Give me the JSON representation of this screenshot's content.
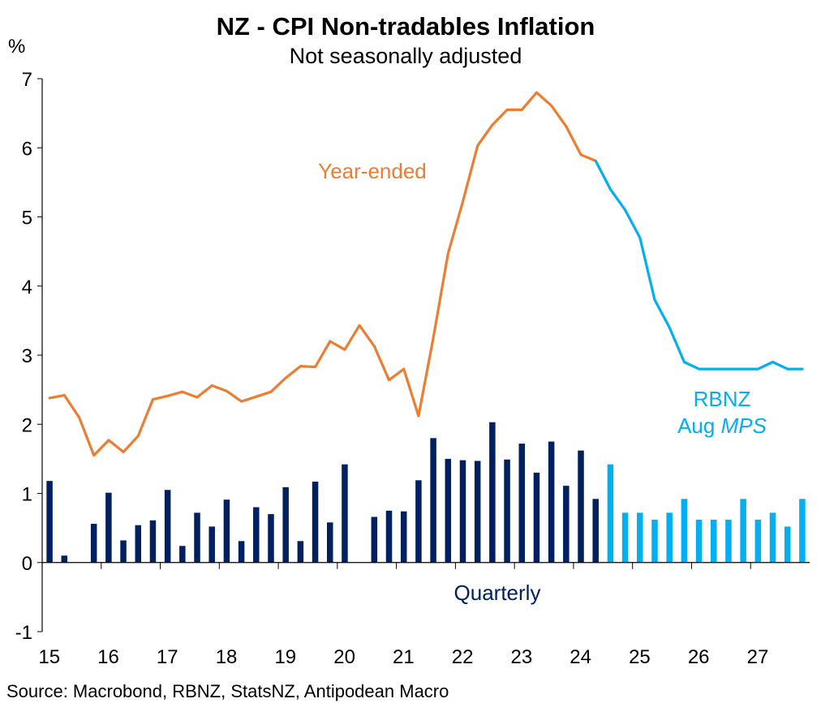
{
  "chart_data": {
    "type": "bar+line",
    "title": "NZ - CPI Non-tradables Inflation",
    "subtitle": "Not seasonally adjusted",
    "ylabel": "%",
    "ylim": [
      -1,
      7
    ],
    "yticks": [
      "-1",
      "0",
      "1",
      "2",
      "3",
      "4",
      "5",
      "6",
      "7"
    ],
    "xticks": [
      "15",
      "16",
      "17",
      "18",
      "19",
      "20",
      "21",
      "22",
      "23",
      "24",
      "25",
      "26",
      "27"
    ],
    "xrange": [
      2015.0,
      2028.0
    ],
    "source": "Source: Macrobond, RBNZ, StatsNZ, Antipodean Macro",
    "colors": {
      "actual_line": "#ed7d31",
      "forecast": "#00b0f0",
      "actual_bar": "#002060"
    },
    "annotations": {
      "line_label": "Year-ended",
      "bar_label": "Quarterly",
      "forecast_label_1": "RBNZ",
      "forecast_label_2_prefix": "Aug ",
      "forecast_label_2_italic": "MPS"
    },
    "series": [
      {
        "name": "Year-ended",
        "kind": "line",
        "x": [
          "2015 Q1",
          "2015 Q2",
          "2015 Q3",
          "2015 Q4",
          "2016 Q1",
          "2016 Q2",
          "2016 Q3",
          "2016 Q4",
          "2017 Q1",
          "2017 Q2",
          "2017 Q3",
          "2017 Q4",
          "2018 Q1",
          "2018 Q2",
          "2018 Q3",
          "2018 Q4",
          "2019 Q1",
          "2019 Q2",
          "2019 Q3",
          "2019 Q4",
          "2020 Q1",
          "2020 Q2",
          "2020 Q3",
          "2020 Q4",
          "2021 Q1",
          "2021 Q2",
          "2021 Q3",
          "2021 Q4",
          "2022 Q1",
          "2022 Q2",
          "2022 Q3",
          "2022 Q4",
          "2023 Q1",
          "2023 Q2",
          "2023 Q3",
          "2023 Q4",
          "2024 Q1",
          "2024 Q2"
        ],
        "values": [
          2.38,
          2.42,
          2.1,
          1.55,
          1.77,
          1.6,
          1.83,
          2.36,
          2.41,
          2.47,
          2.39,
          2.56,
          2.48,
          2.33,
          2.4,
          2.47,
          2.67,
          2.84,
          2.83,
          3.2,
          3.08,
          3.43,
          3.13,
          2.64,
          2.8,
          2.12,
          3.25,
          4.47,
          5.22,
          6.03,
          6.33,
          6.55,
          6.55,
          6.8,
          6.61,
          6.31,
          5.9,
          5.81
        ]
      },
      {
        "name": "RBNZ Aug MPS",
        "kind": "line",
        "x": [
          "2024 Q2",
          "2024 Q3",
          "2024 Q4",
          "2025 Q1",
          "2025 Q2",
          "2025 Q3",
          "2025 Q4",
          "2026 Q1",
          "2026 Q2",
          "2026 Q3",
          "2026 Q4",
          "2027 Q1",
          "2027 Q2",
          "2027 Q3",
          "2027 Q4"
        ],
        "values": [
          5.81,
          5.4,
          5.1,
          4.7,
          3.8,
          3.4,
          2.9,
          2.8,
          2.8,
          2.8,
          2.8,
          2.8,
          2.9,
          2.8,
          2.8
        ]
      },
      {
        "name": "Quarterly",
        "kind": "bar",
        "x": [
          "2015 Q1",
          "2015 Q2",
          "2015 Q3",
          "2015 Q4",
          "2016 Q1",
          "2016 Q2",
          "2016 Q3",
          "2016 Q4",
          "2017 Q1",
          "2017 Q2",
          "2017 Q3",
          "2017 Q4",
          "2018 Q1",
          "2018 Q2",
          "2018 Q3",
          "2018 Q4",
          "2019 Q1",
          "2019 Q2",
          "2019 Q3",
          "2019 Q4",
          "2020 Q1",
          "2020 Q2",
          "2020 Q3",
          "2020 Q4",
          "2021 Q1",
          "2021 Q2",
          "2021 Q3",
          "2021 Q4",
          "2022 Q1",
          "2022 Q2",
          "2022 Q3",
          "2022 Q4",
          "2023 Q1",
          "2023 Q2",
          "2023 Q3",
          "2023 Q4",
          "2024 Q1",
          "2024 Q2"
        ],
        "values": [
          1.18,
          0.1,
          0.0,
          0.56,
          1.01,
          0.32,
          0.54,
          0.61,
          1.05,
          0.24,
          0.72,
          0.52,
          0.91,
          0.31,
          0.8,
          0.7,
          1.09,
          0.31,
          1.17,
          0.58,
          1.42,
          0.0,
          0.66,
          0.75,
          0.74,
          1.19,
          1.8,
          1.5,
          1.48,
          1.47,
          2.03,
          1.49,
          1.72,
          1.3,
          1.75,
          1.11,
          1.62,
          0.92
        ]
      },
      {
        "name": "RBNZ Aug MPS quarterly",
        "kind": "bar",
        "x": [
          "2024 Q3",
          "2024 Q4",
          "2025 Q1",
          "2025 Q2",
          "2025 Q3",
          "2025 Q4",
          "2026 Q1",
          "2026 Q2",
          "2026 Q3",
          "2026 Q4",
          "2027 Q1",
          "2027 Q2",
          "2027 Q3",
          "2027 Q4"
        ],
        "values": [
          1.42,
          0.72,
          0.72,
          0.62,
          0.72,
          0.92,
          0.62,
          0.62,
          0.62,
          0.92,
          0.62,
          0.72,
          0.52,
          0.92
        ]
      }
    ]
  }
}
